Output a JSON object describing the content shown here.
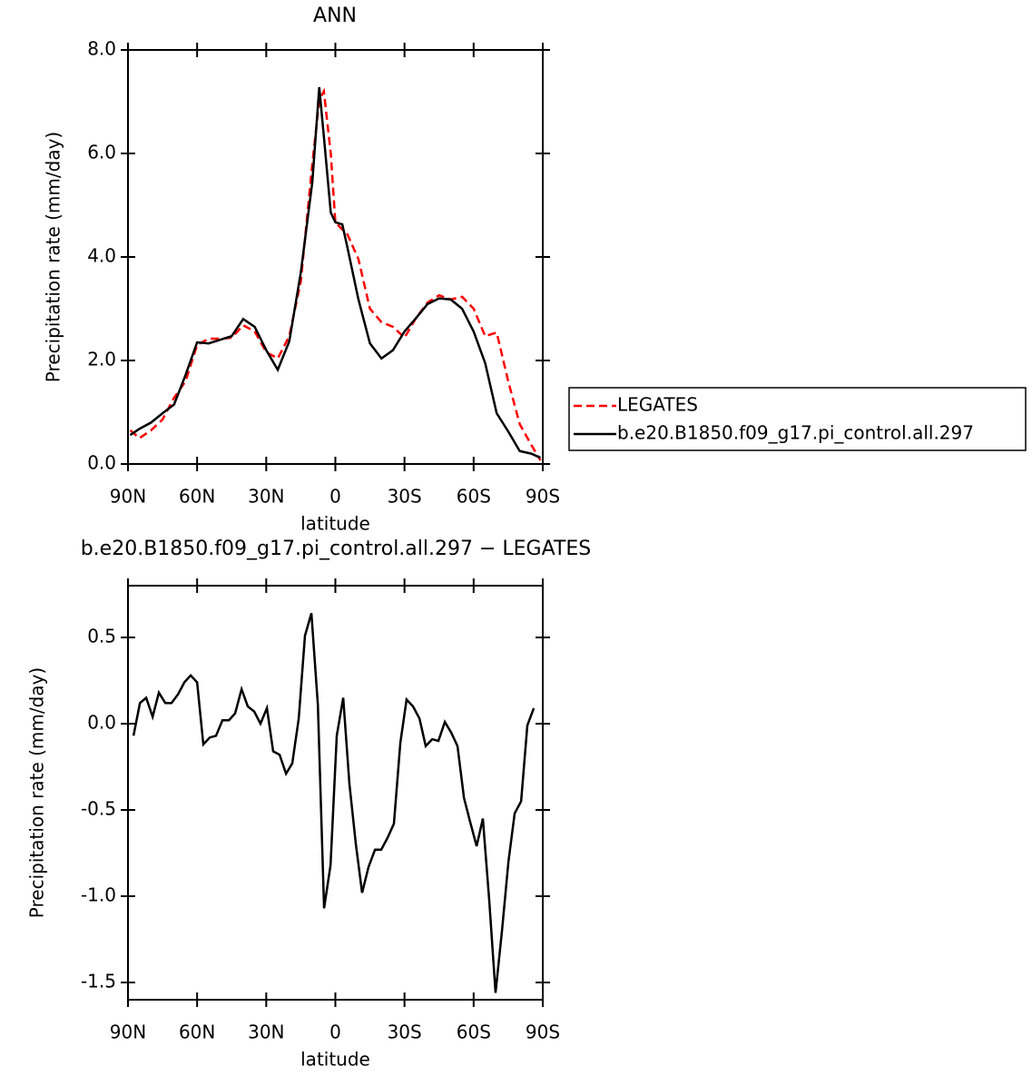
{
  "chart_data": [
    {
      "type": "line",
      "title": "ANN",
      "xlabel": "latitude",
      "ylabel": "Precipitation rate (mm/day)",
      "x": [
        89,
        85,
        80,
        75,
        70,
        65,
        60,
        55,
        50,
        45,
        40,
        35,
        30,
        25,
        20,
        15,
        10,
        7,
        5,
        2,
        0,
        -3,
        -5,
        -10,
        -15,
        -20,
        -25,
        -30,
        -35,
        -40,
        -45,
        -50,
        -55,
        -60,
        -65,
        -70,
        -75,
        -80,
        -85,
        -89
      ],
      "series": [
        {
          "name": "LEGATES",
          "color": "#ff0000",
          "style": "dashed",
          "values": [
            0.65,
            0.5,
            0.65,
            0.86,
            1.28,
            1.6,
            2.3,
            2.42,
            2.42,
            2.44,
            2.68,
            2.56,
            2.16,
            2.04,
            2.47,
            3.53,
            5.8,
            7.03,
            7.2,
            6.0,
            4.67,
            4.53,
            4.46,
            3.96,
            3.0,
            2.74,
            2.65,
            2.44,
            2.82,
            3.12,
            3.26,
            3.18,
            3.23,
            3.0,
            2.47,
            2.54,
            1.6,
            0.77,
            0.37,
            0.07
          ]
        },
        {
          "name": "b.e20.B1850.f09_g17.pi_control.all.297",
          "color": "#000000",
          "style": "solid",
          "values": [
            0.56,
            0.68,
            0.8,
            0.98,
            1.15,
            1.72,
            2.35,
            2.33,
            2.4,
            2.47,
            2.8,
            2.65,
            2.2,
            1.82,
            2.37,
            3.7,
            5.45,
            7.28,
            6.33,
            4.86,
            4.67,
            4.63,
            4.23,
            3.18,
            2.33,
            2.04,
            2.2,
            2.56,
            2.82,
            3.09,
            3.2,
            3.18,
            3.0,
            2.56,
            1.95,
            0.98,
            0.63,
            0.25,
            0.2,
            0.12
          ]
        }
      ],
      "xlim": [
        90,
        -90
      ],
      "xticks": [
        {
          "value": 90,
          "label": "90N"
        },
        {
          "value": 60,
          "label": "60N"
        },
        {
          "value": 30,
          "label": "30N"
        },
        0,
        {
          "value": -30,
          "label": "30S"
        },
        {
          "value": -60,
          "label": "60S"
        },
        {
          "value": -90,
          "label": "90S"
        }
      ],
      "ylim": [
        0,
        8
      ],
      "yticks": [
        {
          "value": 0,
          "label": "0.0"
        },
        {
          "value": 2,
          "label": "2.0"
        },
        {
          "value": 4,
          "label": "4.0"
        },
        {
          "value": 6,
          "label": "6.0"
        },
        {
          "value": 8,
          "label": "8.0"
        }
      ],
      "legend": "right"
    },
    {
      "type": "line",
      "title": "b.e20.B1850.f09_g17.pi_control.all.297 − LEGATES",
      "xlabel": "latitude",
      "ylabel": "Precipitation rate (mm/day)",
      "x": [
        87.6,
        84.8,
        82.1,
        79.3,
        76.6,
        73.8,
        71.1,
        68.3,
        65.5,
        62.8,
        60.0,
        57.3,
        54.5,
        51.8,
        49.0,
        46.2,
        43.5,
        40.7,
        38.0,
        35.2,
        32.5,
        29.7,
        27.0,
        24.2,
        21.4,
        18.7,
        15.9,
        13.2,
        10.4,
        7.6,
        4.9,
        2.1,
        -0.6,
        -3.4,
        -6.1,
        -8.9,
        -11.6,
        -14.4,
        -17.2,
        -19.9,
        -22.7,
        -25.4,
        -28.2,
        -30.9,
        -33.7,
        -36.5,
        -39.2,
        -42.0,
        -44.7,
        -47.5,
        -50.2,
        -53.0,
        -55.8,
        -58.5,
        -61.3,
        -64.0,
        -66.8,
        -69.5,
        -72.3,
        -75.1,
        -77.8,
        -80.6,
        -83.3,
        -86.1
      ],
      "values": [
        -0.07,
        0.12,
        0.15,
        0.04,
        0.18,
        0.12,
        0.12,
        0.17,
        0.24,
        0.28,
        0.24,
        -0.12,
        -0.08,
        -0.07,
        0.02,
        0.02,
        0.06,
        0.2,
        0.1,
        0.07,
        0.0,
        0.09,
        -0.16,
        -0.18,
        -0.29,
        -0.23,
        0.03,
        0.51,
        0.64,
        0.11,
        -1.07,
        -0.82,
        -0.07,
        0.15,
        -0.35,
        -0.7,
        -0.98,
        -0.83,
        -0.73,
        -0.73,
        -0.66,
        -0.58,
        -0.11,
        0.14,
        0.1,
        0.03,
        -0.13,
        -0.09,
        -0.1,
        0.01,
        -0.05,
        -0.13,
        -0.43,
        -0.57,
        -0.71,
        -0.55,
        -1.03,
        -1.56,
        -1.2,
        -0.8,
        -0.52,
        -0.45,
        -0.01,
        0.09
      ],
      "color": "#000000",
      "xlim": [
        90,
        -90
      ],
      "xticks": [
        {
          "value": 90,
          "label": "90N"
        },
        {
          "value": 60,
          "label": "60N"
        },
        {
          "value": 30,
          "label": "30N"
        },
        0,
        {
          "value": -30,
          "label": "30S"
        },
        {
          "value": -60,
          "label": "60S"
        },
        {
          "value": -90,
          "label": "90S"
        }
      ],
      "ylim": [
        -1.6,
        0.8
      ],
      "yticks": [
        -1.5,
        {
          "value": -1.0,
          "label": "-1.0"
        },
        -0.5,
        {
          "value": 0.0,
          "label": "0.0"
        },
        0.5
      ]
    }
  ]
}
